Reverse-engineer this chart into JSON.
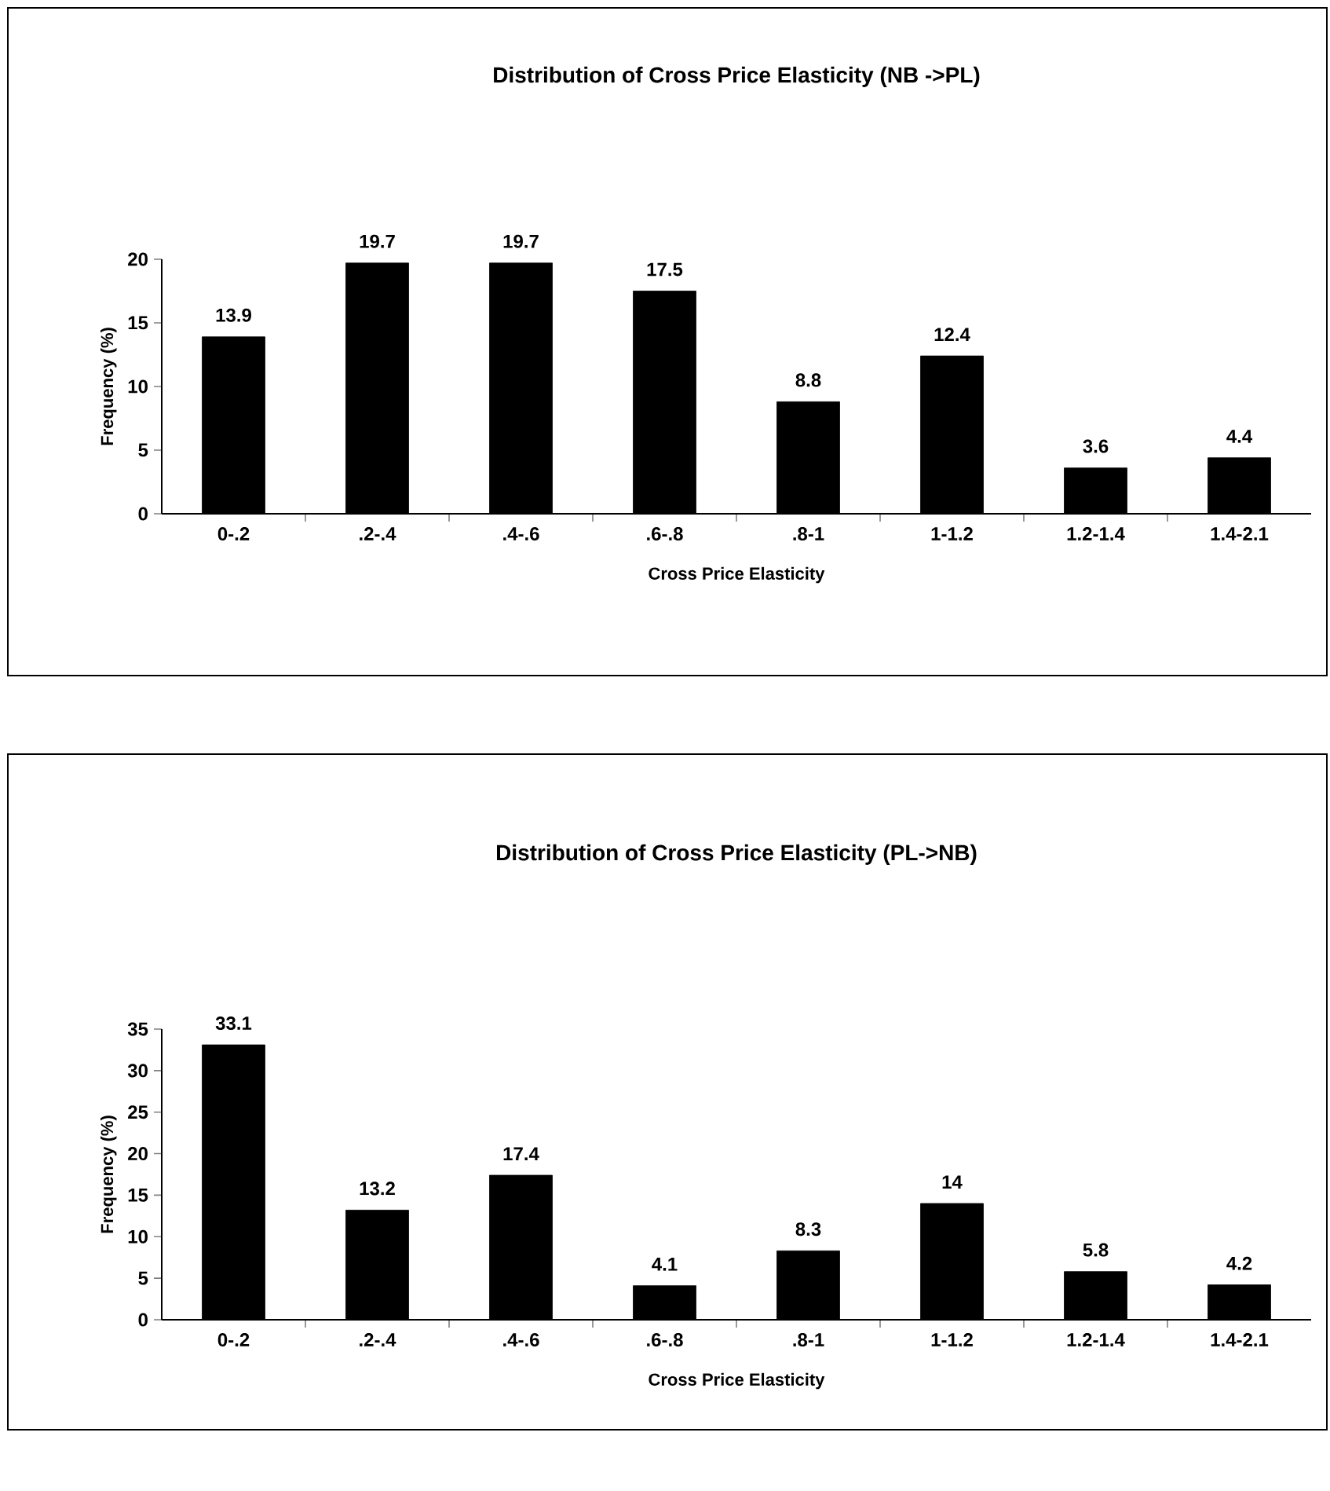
{
  "chart_data": [
    {
      "type": "bar",
      "title": "Distribution of Cross Price Elasticity (NB ->PL)",
      "xlabel": "Cross Price Elasticity",
      "ylabel": "Frequency (%)",
      "categories": [
        "0-.2",
        ".2-.4",
        ".4-.6",
        ".6-.8",
        ".8-1",
        "1-1.2",
        "1.2-1.4",
        "1.4-2.1"
      ],
      "values": [
        13.9,
        19.7,
        19.7,
        17.5,
        8.8,
        12.4,
        3.6,
        4.4
      ],
      "color": "#000000",
      "ylim": [
        0,
        20
      ],
      "yticks": [
        0,
        5,
        10,
        15,
        20
      ],
      "data_labels": true,
      "grid": false
    },
    {
      "type": "bar",
      "title": "Distribution of Cross Price Elasticity (PL->NB)",
      "xlabel": "Cross Price Elasticity",
      "ylabel": "Frequency (%)",
      "categories": [
        "0-.2",
        ".2-.4",
        ".4-.6",
        ".6-.8",
        ".8-1",
        "1-1.2",
        "1.2-1.4",
        "1.4-2.1"
      ],
      "values": [
        33.1,
        13.2,
        17.4,
        4.1,
        8.3,
        14,
        5.8,
        4.2
      ],
      "color": "#000000",
      "ylim": [
        0,
        35
      ],
      "yticks": [
        0,
        5,
        10,
        15,
        20,
        25,
        30,
        35
      ],
      "data_labels": true,
      "grid": false
    }
  ]
}
